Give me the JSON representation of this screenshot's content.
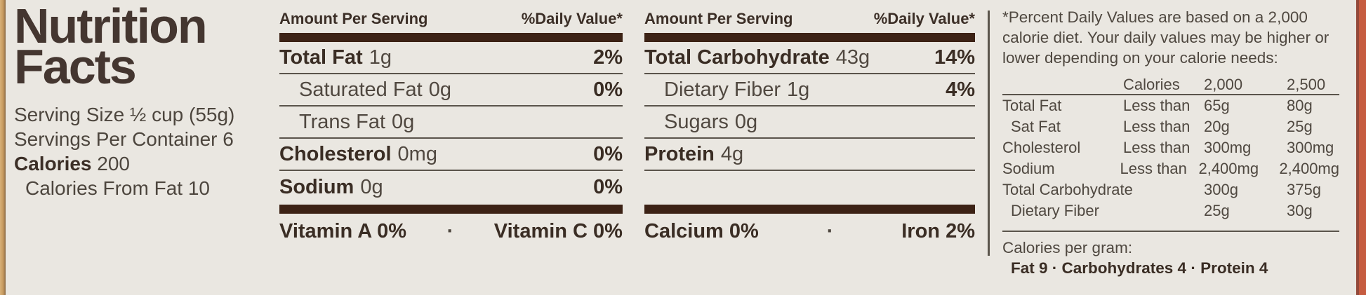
{
  "label": {
    "title_line1": "Nutrition",
    "title_line2": "Facts",
    "serving_size": "Serving Size ½ cup (55g)",
    "servings_per_container": "Servings Per Container 6",
    "calories_label": "Calories",
    "calories_value": "200",
    "calories_from_fat": "Calories From Fat 10"
  },
  "panel_fat": {
    "header_amount": "Amount Per Serving",
    "header_dv": "%Daily Value*",
    "rows": [
      {
        "name": "Total Fat",
        "amount": "1g",
        "dv": "2%"
      },
      {
        "name": "Saturated Fat",
        "amount": "0g",
        "dv": "0%"
      },
      {
        "name": "Trans Fat",
        "amount": "0g",
        "dv": ""
      },
      {
        "name": "Cholesterol",
        "amount": "0mg",
        "dv": "0%"
      },
      {
        "name": "Sodium",
        "amount": "0g",
        "dv": "0%"
      }
    ],
    "micro_left": "Vitamin A 0%",
    "micro_dot": "·",
    "micro_right": "Vitamin C 0%"
  },
  "panel_carb": {
    "header_amount": "Amount Per Serving",
    "header_dv": "%Daily Value*",
    "rows": [
      {
        "name": "Total Carbohydrate",
        "amount": "43g",
        "dv": "14%"
      },
      {
        "name": "Dietary Fiber",
        "amount": "1g",
        "dv": "4%"
      },
      {
        "name": "Sugars",
        "amount": "0g",
        "dv": ""
      },
      {
        "name": "Protein",
        "amount": "4g",
        "dv": ""
      }
    ],
    "micro_left": "Calcium 0%",
    "micro_dot": "·",
    "micro_right": "Iron 2%"
  },
  "footnote": {
    "text": "*Percent Daily Values are based on a 2,000 calorie diet. Your daily values may be higher or lower depending on your calorie needs:",
    "table": {
      "header": {
        "calories": "Calories",
        "v2000": "2,000",
        "v2500": "2,500"
      },
      "rows": [
        {
          "label": "Total Fat",
          "qualifier": "Less than",
          "v2000": "65g",
          "v2500": "80g"
        },
        {
          "label": "Sat Fat",
          "qualifier": "Less than",
          "v2000": "20g",
          "v2500": "25g"
        },
        {
          "label": "Cholesterol",
          "qualifier": "Less than",
          "v2000": "300mg",
          "v2500": "300mg"
        },
        {
          "label": "Sodium",
          "qualifier": "Less than",
          "v2000": "2,400mg",
          "v2500": "2,400mg"
        },
        {
          "label": "Total Carbohydrate",
          "qualifier": "",
          "v2000": "300g",
          "v2500": "375g"
        },
        {
          "label": "Dietary Fiber",
          "qualifier": "",
          "v2000": "25g",
          "v2500": "30g"
        }
      ]
    },
    "calories_per_gram_label": "Calories per gram:",
    "calories_per_gram_values": "Fat 9 · Carbohydrates 4 · Protein 4"
  },
  "colors": {
    "background": "#eae7e1",
    "ink_bold": "#3a2d24",
    "ink_regular": "#504840",
    "thick_bar": "#3c2215",
    "thin_rule": "#5a544b",
    "package_edge_left": "#c69a5f",
    "package_edge_right": "#c65c40"
  }
}
